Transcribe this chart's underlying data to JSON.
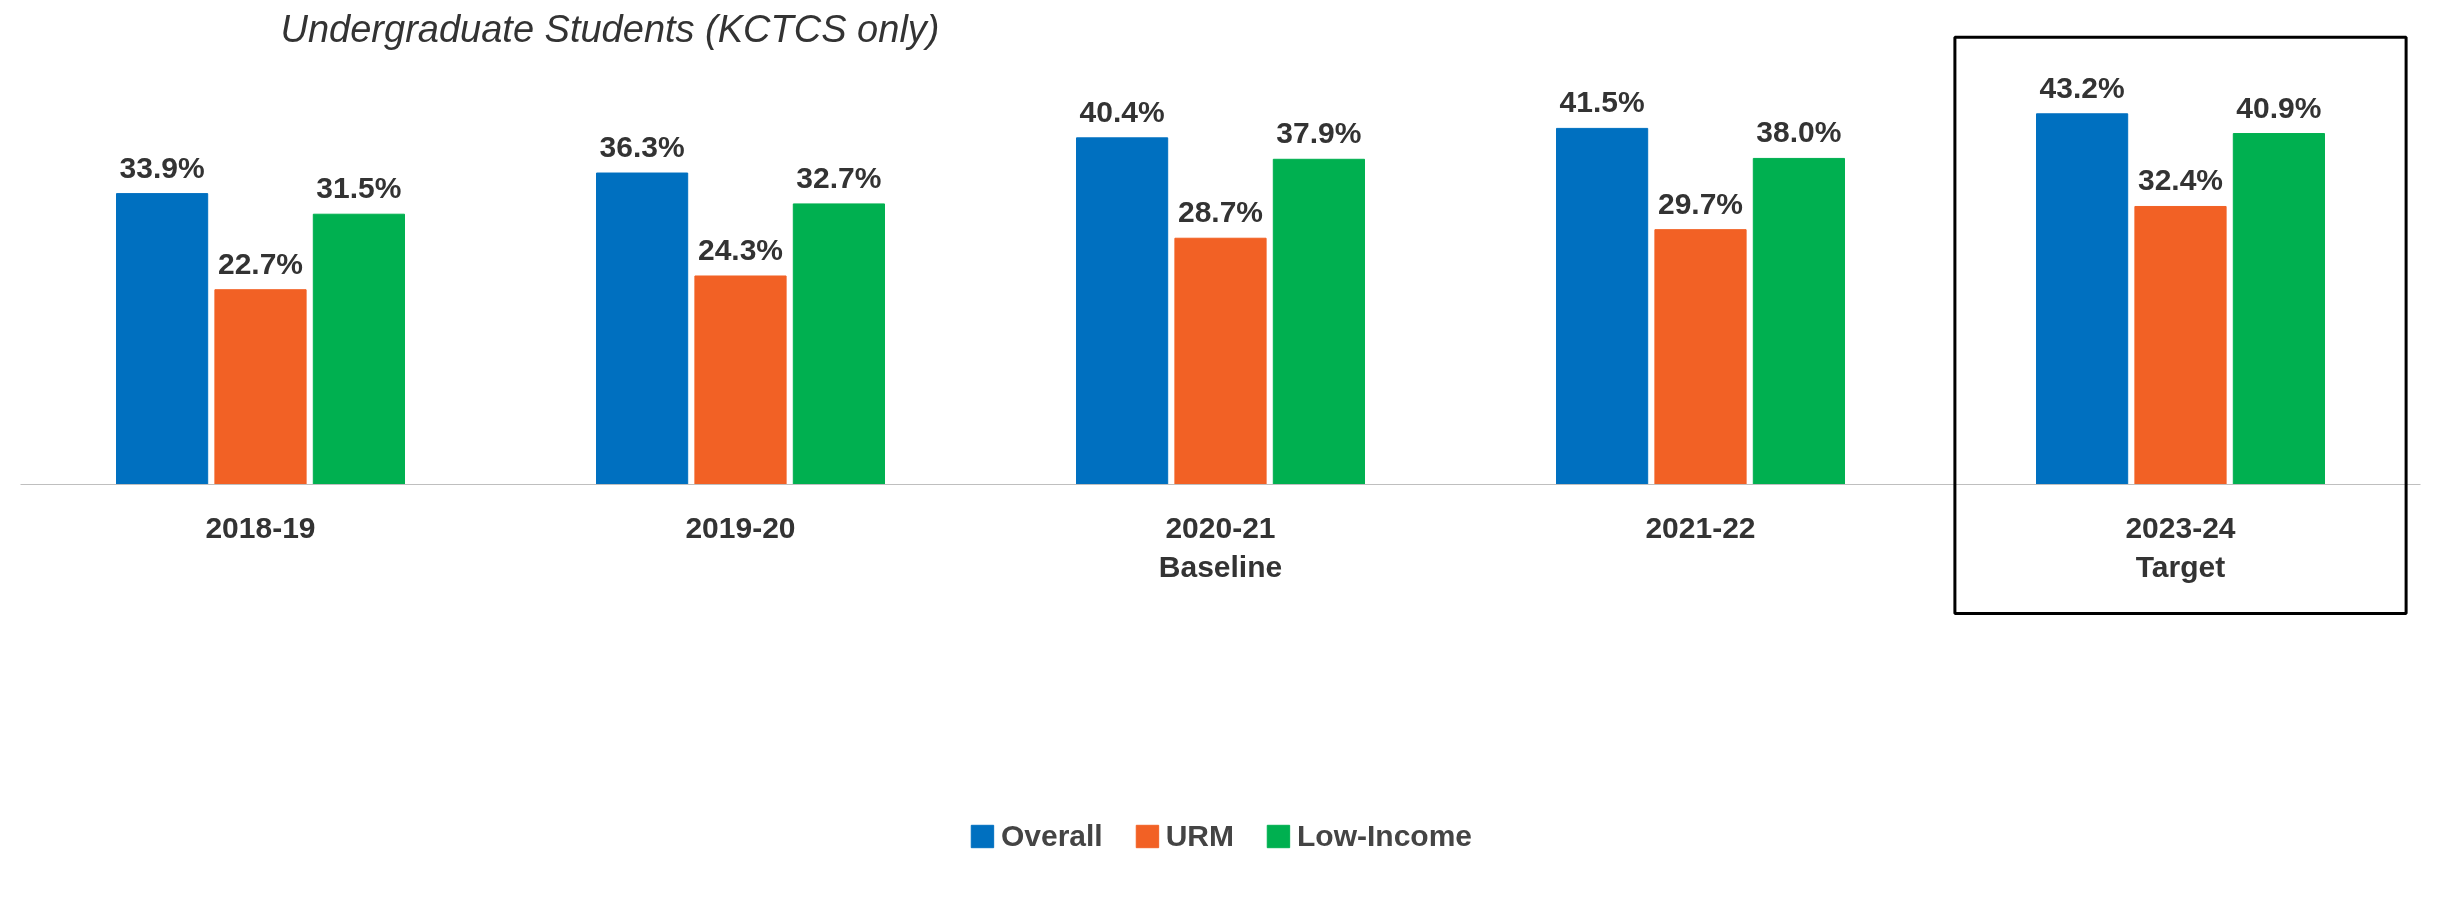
{
  "chart_data": {
    "type": "bar",
    "title": "Undergraduate Students (KCTCS only)",
    "categories": [
      "2018-19",
      "2019-20",
      "2020-21\nBaseline",
      "2021-22",
      "2023-24\nTarget"
    ],
    "series": [
      {
        "name": "Overall",
        "color": "#0070c0",
        "values": [
          33.9,
          36.3,
          40.4,
          41.5,
          43.2
        ],
        "value_labels": [
          "33.9%",
          "36.3%",
          "40.4%",
          "41.5%",
          "43.2%"
        ]
      },
      {
        "name": "URM",
        "color": "#f26125",
        "values": [
          22.7,
          24.3,
          28.7,
          29.7,
          32.4
        ],
        "value_labels": [
          "22.7%",
          "24.3%",
          "28.7%",
          "29.7%",
          "32.4%"
        ]
      },
      {
        "name": "Low-Income",
        "color": "#00b050",
        "values": [
          31.5,
          32.7,
          37.9,
          38.0,
          40.9
        ],
        "value_labels": [
          "31.5%",
          "32.7%",
          "37.9%",
          "38.0%",
          "40.9%"
        ]
      }
    ],
    "legend": "bottom",
    "grid": false
  }
}
